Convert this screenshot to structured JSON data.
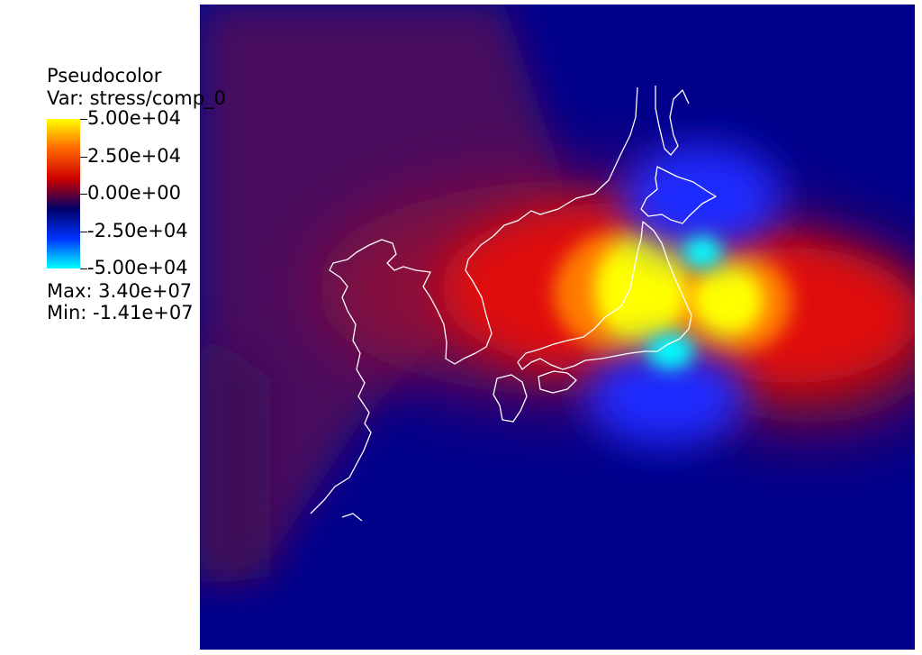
{
  "chart_data": {
    "type": "heatmap",
    "plot_name": "Pseudocolor",
    "variable_label": "Var: stress/comp_0",
    "colorbar": {
      "ticks": [
        "5.00e+04",
        "2.50e+04",
        "0.00e+00",
        "-2.50e+04",
        "-5.00e+04"
      ],
      "tick_values": [
        50000,
        25000,
        0,
        -25000,
        -50000
      ],
      "range": [
        -50000,
        50000
      ],
      "colormap": [
        "#00ffff",
        "#0033ff",
        "#000066",
        "#cc0000",
        "#ff6600",
        "#ffff00"
      ]
    },
    "max_label": "Max:  3.40e+07",
    "min_label": "Min: -1.41e+07",
    "background_color": "#00008b",
    "coastline_color": "#ffffff"
  }
}
